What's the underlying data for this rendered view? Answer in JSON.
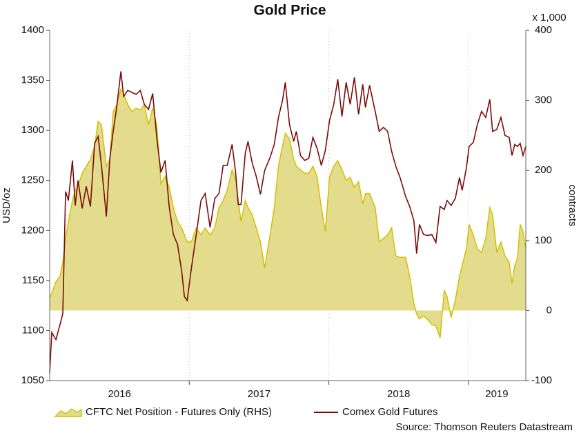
{
  "chart_data": {
    "type": "line",
    "title": "Gold Price",
    "y_label": "USD/oz",
    "y2_label": "contracts",
    "y2_unit": "x 1,000",
    "source": "Source: Thomson Reuters Datastream",
    "xlim": [
      2016,
      2019.411
    ],
    "xticks": [
      {
        "value": 2016.5,
        "label": "2016"
      },
      {
        "value": 2017.5,
        "label": "2017"
      },
      {
        "value": 2018.5,
        "label": "2018"
      },
      {
        "value": 2019.203,
        "label": "2019"
      }
    ],
    "xgrid": [
      2017,
      2018,
      2019
    ],
    "ylim": [
      1050,
      1400
    ],
    "yticks": [
      1050,
      1100,
      1150,
      1200,
      1250,
      1300,
      1350,
      1400
    ],
    "y2lim": [
      -100,
      400
    ],
    "y2ticks": [
      -100,
      0,
      100,
      200,
      300,
      400
    ],
    "x": [
      2016,
      2016.015,
      2016.045,
      2016.074,
      2016.094,
      2016.114,
      2016.134,
      2016.163,
      2016.183,
      2016.203,
      2016.233,
      2016.262,
      2016.292,
      2016.322,
      2016.347,
      2016.371,
      2016.406,
      2016.431,
      2016.455,
      2016.48,
      2016.51,
      2016.53,
      2016.559,
      2016.589,
      2016.619,
      2016.649,
      2016.678,
      2016.708,
      2016.738,
      2016.767,
      2016.797,
      2016.827,
      2016.856,
      2016.886,
      2016.916,
      2016.946,
      2016.965,
      2016.985,
      2017.015,
      2017.05,
      2017.084,
      2017.114,
      2017.149,
      2017.183,
      2017.213,
      2017.243,
      2017.272,
      2017.307,
      2017.332,
      2017.351,
      2017.371,
      2017.401,
      2017.421,
      2017.45,
      2017.48,
      2017.51,
      2017.54,
      2017.579,
      2017.609,
      2017.639,
      2017.668,
      2017.688,
      2017.718,
      2017.748,
      2017.767,
      2017.797,
      2017.827,
      2017.856,
      2017.886,
      2017.916,
      2017.946,
      2017.975,
      2018.005,
      2018.035,
      2018.064,
      2018.094,
      2018.124,
      2018.153,
      2018.183,
      2018.213,
      2018.243,
      2018.262,
      2018.292,
      2018.332,
      2018.361,
      2018.391,
      2018.421,
      2018.45,
      2018.48,
      2018.51,
      2018.55,
      2018.579,
      2018.609,
      2018.629,
      2018.649,
      2018.678,
      2018.708,
      2018.738,
      2018.767,
      2018.797,
      2018.827,
      2018.847,
      2018.876,
      2018.906,
      2018.936,
      2018.955,
      2018.985,
      2019.005,
      2019.035,
      2019.064,
      2019.094,
      2019.124,
      2019.153,
      2019.173,
      2019.203,
      2019.233,
      2019.262,
      2019.292,
      2019.312,
      2019.332,
      2019.351,
      2019.371,
      2019.391,
      2019.411
    ],
    "series": [
      {
        "name": "CFTC Net Position - Futures Only (RHS)",
        "kind": "area",
        "axis": "y2",
        "color": "#d4c000",
        "fill": "#e2dc8c",
        "values": [
          18,
          25,
          41,
          49,
          69,
          103,
          127,
          157,
          172,
          178,
          196,
          206,
          216,
          235,
          270,
          265,
          206,
          216,
          284,
          294,
          316,
          309,
          294,
          284,
          289,
          286,
          294,
          265,
          289,
          265,
          181,
          191,
          176,
          147,
          127,
          118,
          108,
          98,
          98,
          118,
          108,
          118,
          108,
          118,
          147,
          157,
          172,
          201,
          186,
          157,
          127,
          157,
          147,
          137,
          118,
          98,
          61,
          108,
          147,
          206,
          235,
          253,
          245,
          216,
          206,
          201,
          196,
          196,
          206,
          191,
          147,
          113,
          191,
          206,
          214,
          201,
          186,
          190,
          176,
          184,
          152,
          167,
          167,
          147,
          98,
          103,
          108,
          118,
          78,
          76,
          76,
          49,
          10,
          -5,
          -12,
          -8,
          -13,
          -20,
          -22,
          -39,
          29,
          20,
          -10,
          15,
          49,
          64,
          88,
          123,
          108,
          88,
          83,
          103,
          147,
          137,
          83,
          98,
          78,
          69,
          39,
          64,
          74,
          123,
          113,
          88
        ]
      },
      {
        "name": "Comex Gold Futures",
        "kind": "line",
        "axis": "y",
        "color": "#7a0a0a",
        "values": [
          1058,
          1098,
          1091,
          1106,
          1117,
          1239,
          1230,
          1270,
          1225,
          1250,
          1222,
          1244,
          1224,
          1287,
          1294,
          1265,
          1214,
          1272,
          1299,
          1323,
          1359,
          1334,
          1340,
          1338,
          1336,
          1340,
          1326,
          1321,
          1337,
          1293,
          1258,
          1270,
          1224,
          1196,
          1186,
          1159,
          1134,
          1130,
          1162,
          1196,
          1230,
          1237,
          1203,
          1232,
          1237,
          1265,
          1265,
          1286,
          1258,
          1226,
          1226,
          1277,
          1289,
          1268,
          1254,
          1236,
          1260,
          1273,
          1286,
          1313,
          1330,
          1348,
          1306,
          1289,
          1299,
          1275,
          1270,
          1272,
          1293,
          1282,
          1265,
          1280,
          1310,
          1326,
          1351,
          1314,
          1348,
          1326,
          1353,
          1316,
          1346,
          1323,
          1345,
          1319,
          1299,
          1303,
          1299,
          1279,
          1264,
          1253,
          1234,
          1224,
          1210,
          1177,
          1206,
          1196,
          1195,
          1196,
          1188,
          1224,
          1221,
          1230,
          1225,
          1232,
          1253,
          1240,
          1262,
          1284,
          1288,
          1306,
          1319,
          1313,
          1331,
          1299,
          1301,
          1313,
          1295,
          1293,
          1275,
          1286,
          1284,
          1287,
          1275,
          1284
        ]
      }
    ]
  }
}
